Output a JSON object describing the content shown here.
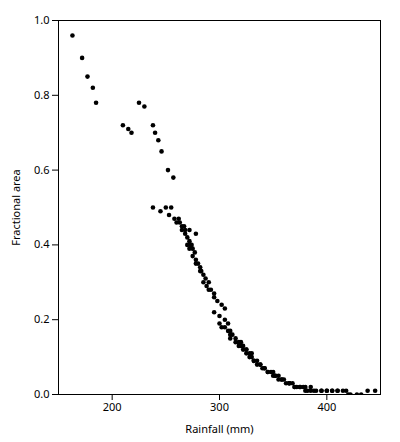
{
  "chart_data": {
    "type": "scatter",
    "xlabel": "Rainfall (mm)",
    "ylabel": "Fractional area",
    "x": [
      163,
      172,
      177,
      182,
      185,
      210,
      215,
      218,
      225,
      230,
      238,
      240,
      243,
      246,
      252,
      257,
      238,
      245,
      250,
      253,
      255,
      258,
      260,
      262,
      263,
      265,
      267,
      268,
      265,
      268,
      270,
      272,
      273,
      274,
      275,
      277,
      270,
      272,
      275,
      278,
      280,
      282,
      283,
      278,
      282,
      285,
      287,
      290,
      285,
      288,
      292,
      295,
      290,
      295,
      298,
      302,
      305,
      272,
      278,
      295,
      300,
      305,
      308,
      300,
      302,
      305,
      308,
      310,
      310,
      312,
      315,
      318,
      320,
      310,
      315,
      320,
      322,
      325,
      318,
      322,
      325,
      328,
      330,
      325,
      328,
      330,
      332,
      335,
      332,
      335,
      338,
      340,
      342,
      338,
      342,
      345,
      348,
      350,
      345,
      350,
      352,
      355,
      358,
      352,
      355,
      358,
      362,
      365,
      360,
      365,
      368,
      370,
      372,
      365,
      370,
      375,
      378,
      380,
      375,
      380,
      382,
      385,
      388,
      385,
      390,
      395,
      400,
      395,
      400,
      405,
      410,
      405,
      410,
      415,
      420,
      418,
      422,
      428,
      432,
      438,
      445
    ],
    "y": [
      0.96,
      0.9,
      0.85,
      0.82,
      0.78,
      0.72,
      0.71,
      0.7,
      0.78,
      0.77,
      0.72,
      0.7,
      0.68,
      0.65,
      0.6,
      0.58,
      0.5,
      0.49,
      0.5,
      0.48,
      0.5,
      0.47,
      0.46,
      0.47,
      0.46,
      0.45,
      0.45,
      0.44,
      0.44,
      0.43,
      0.42,
      0.41,
      0.4,
      0.4,
      0.39,
      0.38,
      0.4,
      0.39,
      0.37,
      0.36,
      0.35,
      0.34,
      0.33,
      0.35,
      0.33,
      0.32,
      0.31,
      0.3,
      0.3,
      0.29,
      0.28,
      0.27,
      0.28,
      0.26,
      0.25,
      0.24,
      0.23,
      0.44,
      0.43,
      0.22,
      0.21,
      0.2,
      0.19,
      0.19,
      0.18,
      0.18,
      0.17,
      0.17,
      0.16,
      0.16,
      0.15,
      0.14,
      0.14,
      0.15,
      0.14,
      0.13,
      0.13,
      0.12,
      0.13,
      0.12,
      0.12,
      0.11,
      0.11,
      0.11,
      0.1,
      0.1,
      0.09,
      0.09,
      0.09,
      0.08,
      0.08,
      0.07,
      0.07,
      0.08,
      0.07,
      0.06,
      0.06,
      0.06,
      0.06,
      0.05,
      0.05,
      0.05,
      0.04,
      0.05,
      0.04,
      0.04,
      0.03,
      0.03,
      0.04,
      0.03,
      0.03,
      0.02,
      0.02,
      0.03,
      0.02,
      0.02,
      0.02,
      0.01,
      0.02,
      0.02,
      0.01,
      0.01,
      0.01,
      0.02,
      0.01,
      0.01,
      0.01,
      0.01,
      0.01,
      0.01,
      0.01,
      0.01,
      0.01,
      0.01,
      0.0,
      0.01,
      0.0,
      0.0,
      0.0,
      0.01,
      0.01
    ],
    "xlim": [
      150,
      450
    ],
    "ylim": [
      0.0,
      1.0
    ],
    "xticks": [
      200,
      300,
      400
    ],
    "yticks": [
      {
        "value": 0.0,
        "label": "0.0"
      },
      0.2,
      0.4,
      0.6,
      0.8,
      {
        "value": 1.0,
        "label": "1.0"
      }
    ],
    "color": "#000000"
  }
}
